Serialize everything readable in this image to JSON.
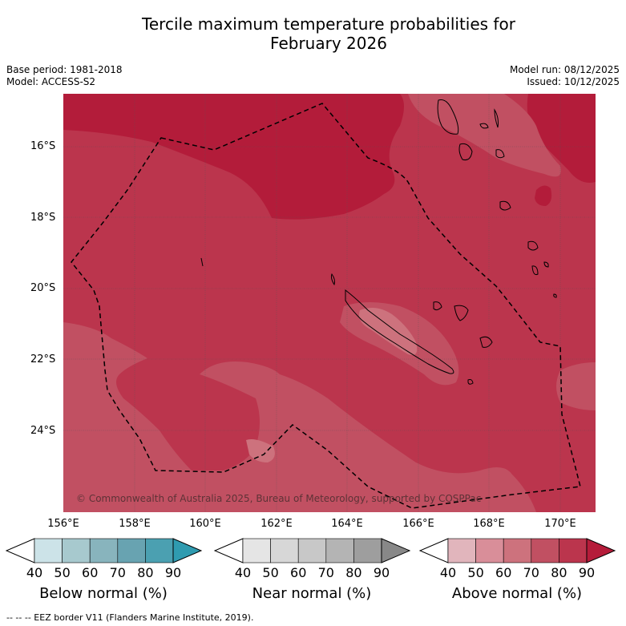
{
  "title_line1": "Tercile maximum temperature probabilities for",
  "title_line2": "February 2026",
  "base_period": "Base period: 1981-2018",
  "model": "Model: ACCESS-S2",
  "model_run": "Model run: 08/12/2025",
  "issued": "Issued: 10/12/2025",
  "lat_labels": [
    "16°S",
    "18°S",
    "20°S",
    "22°S",
    "24°S"
  ],
  "lon_labels": [
    "156°E",
    "158°E",
    "160°E",
    "162°E",
    "164°E",
    "166°E",
    "168°E",
    "170°E"
  ],
  "credit": "© Commonwealth of Australia 2025, Bureau of Meteorology, supported by COSPPac",
  "colorbars": [
    {
      "label": "Below normal (%)",
      "ticks": [
        "40",
        "50",
        "60",
        "70",
        "80",
        "90"
      ],
      "colors": [
        "#cce3e8",
        "#a7c9ce",
        "#88b4bd",
        "#68a3b1",
        "#4ba0b1",
        "#2f9bb0"
      ]
    },
    {
      "label": "Near normal (%)",
      "ticks": [
        "40",
        "50",
        "60",
        "70",
        "80",
        "90"
      ],
      "colors": [
        "#e5e5e5",
        "#d7d7d7",
        "#c8c8c8",
        "#b4b4b4",
        "#9e9e9e",
        "#888888"
      ]
    },
    {
      "label": "Above normal (%)",
      "ticks": [
        "40",
        "50",
        "60",
        "70",
        "80",
        "90"
      ],
      "colors": [
        "#e1b5bc",
        "#d98e99",
        "#cd727d",
        "#c15062",
        "#bb354d",
        "#b51c3a"
      ]
    }
  ],
  "footnote": "--  --  -- EEZ border V11 (Flanders Marine Institute, 2019).",
  "map_colors": {
    "base": "#bb354d",
    "dark": "#b31c3a",
    "light": "#c15062"
  }
}
